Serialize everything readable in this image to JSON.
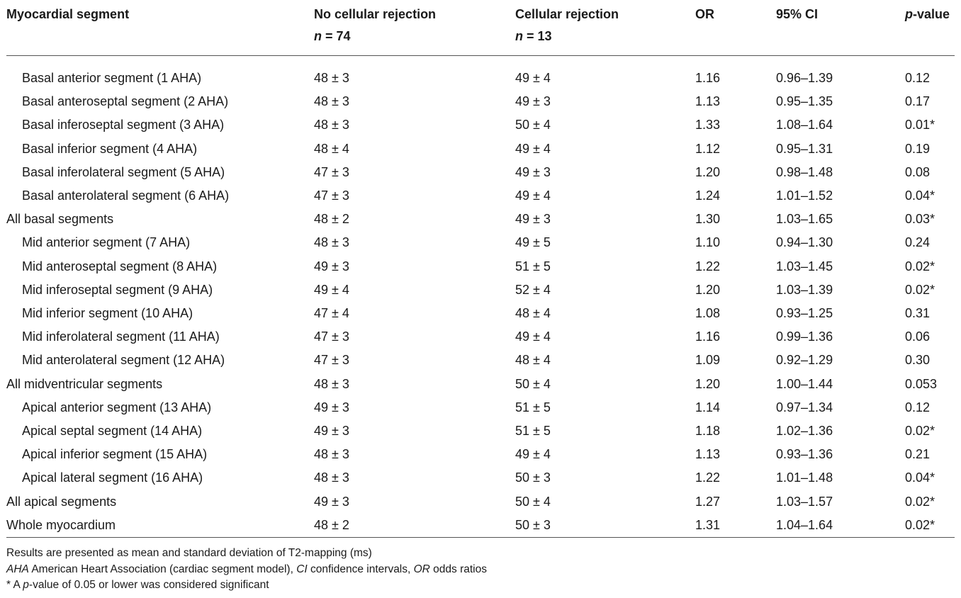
{
  "table": {
    "headers": {
      "segment": "Myocardial segment",
      "no_rejection": "No cellular rejection",
      "no_rejection_n_label": "n",
      "no_rejection_n": "= 74",
      "rejection": "Cellular rejection",
      "rejection_n_label": "n",
      "rejection_n": "= 13",
      "or": "OR",
      "ci": "95% CI",
      "p_label": "p",
      "p_suffix": "-value"
    },
    "rows": [
      {
        "segment": "Basal anterior segment (1 AHA)",
        "indent": true,
        "no_rej": "48 ± 3",
        "rej": "49 ± 4",
        "or": "1.16",
        "ci": "0.96–1.39",
        "p": "0.12"
      },
      {
        "segment": "Basal anteroseptal segment (2 AHA)",
        "indent": true,
        "no_rej": "48 ± 3",
        "rej": "49 ± 3",
        "or": "1.13",
        "ci": "0.95–1.35",
        "p": "0.17"
      },
      {
        "segment": "Basal inferoseptal segment (3 AHA)",
        "indent": true,
        "no_rej": "48 ± 3",
        "rej": "50 ± 4",
        "or": "1.33",
        "ci": "1.08–1.64",
        "p": "0.01*"
      },
      {
        "segment": "Basal inferior segment (4 AHA)",
        "indent": true,
        "no_rej": "48 ± 4",
        "rej": "49 ± 4",
        "or": "1.12",
        "ci": "0.95–1.31",
        "p": "0.19"
      },
      {
        "segment": "Basal inferolateral segment (5 AHA)",
        "indent": true,
        "no_rej": "47 ± 3",
        "rej": "49 ± 3",
        "or": "1.20",
        "ci": "0.98–1.48",
        "p": "0.08"
      },
      {
        "segment": "Basal anterolateral segment (6 AHA)",
        "indent": true,
        "no_rej": "47 ± 3",
        "rej": "49 ± 4",
        "or": "1.24",
        "ci": "1.01–1.52",
        "p": "0.04*"
      },
      {
        "segment": "All basal segments",
        "indent": false,
        "no_rej": "48 ± 2",
        "rej": "49 ± 3",
        "or": "1.30",
        "ci": "1.03–1.65",
        "p": "0.03*"
      },
      {
        "segment": "Mid anterior segment (7 AHA)",
        "indent": true,
        "no_rej": "48 ± 3",
        "rej": "49 ± 5",
        "or": "1.10",
        "ci": "0.94–1.30",
        "p": "0.24"
      },
      {
        "segment": "Mid anteroseptal segment (8 AHA)",
        "indent": true,
        "no_rej": "49 ± 3",
        "rej": "51 ± 5",
        "or": "1.22",
        "ci": "1.03–1.45",
        "p": "0.02*"
      },
      {
        "segment": "Mid inferoseptal segment (9 AHA)",
        "indent": true,
        "no_rej": "49 ± 4",
        "rej": "52 ± 4",
        "or": "1.20",
        "ci": "1.03–1.39",
        "p": "0.02*"
      },
      {
        "segment": "Mid inferior segment (10 AHA)",
        "indent": true,
        "no_rej": "47 ± 4",
        "rej": "48 ± 4",
        "or": "1.08",
        "ci": "0.93–1.25",
        "p": "0.31"
      },
      {
        "segment": "Mid inferolateral segment (11 AHA)",
        "indent": true,
        "no_rej": "47 ± 3",
        "rej": "49 ± 4",
        "or": "1.16",
        "ci": "0.99–1.36",
        "p": "0.06"
      },
      {
        "segment": "Mid anterolateral segment (12 AHA)",
        "indent": true,
        "no_rej": "47 ± 3",
        "rej": "48 ± 4",
        "or": "1.09",
        "ci": "0.92–1.29",
        "p": "0.30"
      },
      {
        "segment": "All midventricular segments",
        "indent": false,
        "no_rej": "48 ± 3",
        "rej": "50 ± 4",
        "or": "1.20",
        "ci": "1.00–1.44",
        "p": "0.053"
      },
      {
        "segment": "Apical anterior segment (13 AHA)",
        "indent": true,
        "no_rej": "49 ± 3",
        "rej": "51 ± 5",
        "or": "1.14",
        "ci": "0.97–1.34",
        "p": "0.12"
      },
      {
        "segment": "Apical septal segment (14 AHA)",
        "indent": true,
        "no_rej": "49 ± 3",
        "rej": "51 ± 5",
        "or": "1.18",
        "ci": "1.02–1.36",
        "p": "0.02*"
      },
      {
        "segment": "Apical inferior segment (15 AHA)",
        "indent": true,
        "no_rej": "48 ± 3",
        "rej": "49 ± 4",
        "or": "1.13",
        "ci": "0.93–1.36",
        "p": "0.21"
      },
      {
        "segment": "Apical lateral segment (16 AHA)",
        "indent": true,
        "no_rej": "48 ± 3",
        "rej": "50 ± 3",
        "or": "1.22",
        "ci": "1.01–1.48",
        "p": "0.04*"
      },
      {
        "segment": "All apical segments",
        "indent": false,
        "no_rej": "49 ± 3",
        "rej": "50 ± 4",
        "or": "1.27",
        "ci": "1.03–1.57",
        "p": "0.02*"
      },
      {
        "segment": "Whole myocardium",
        "indent": false,
        "no_rej": "48 ± 2",
        "rej": "50 ± 3",
        "or": "1.31",
        "ci": "1.04–1.64",
        "p": "0.02*"
      }
    ]
  },
  "notes": {
    "line1": "Results are presented as mean and standard deviation of T2-mapping (ms)",
    "line2_aha": "AHA",
    "line2_aha_text": " American Heart Association (cardiac segment model), ",
    "line2_ci": "CI",
    "line2_ci_text": " confidence intervals, ",
    "line2_or": "OR",
    "line2_or_text": " odds ratios",
    "line3_prefix": "* A ",
    "line3_p": "p",
    "line3_suffix": "-value of 0.05 or lower was considered significant"
  }
}
